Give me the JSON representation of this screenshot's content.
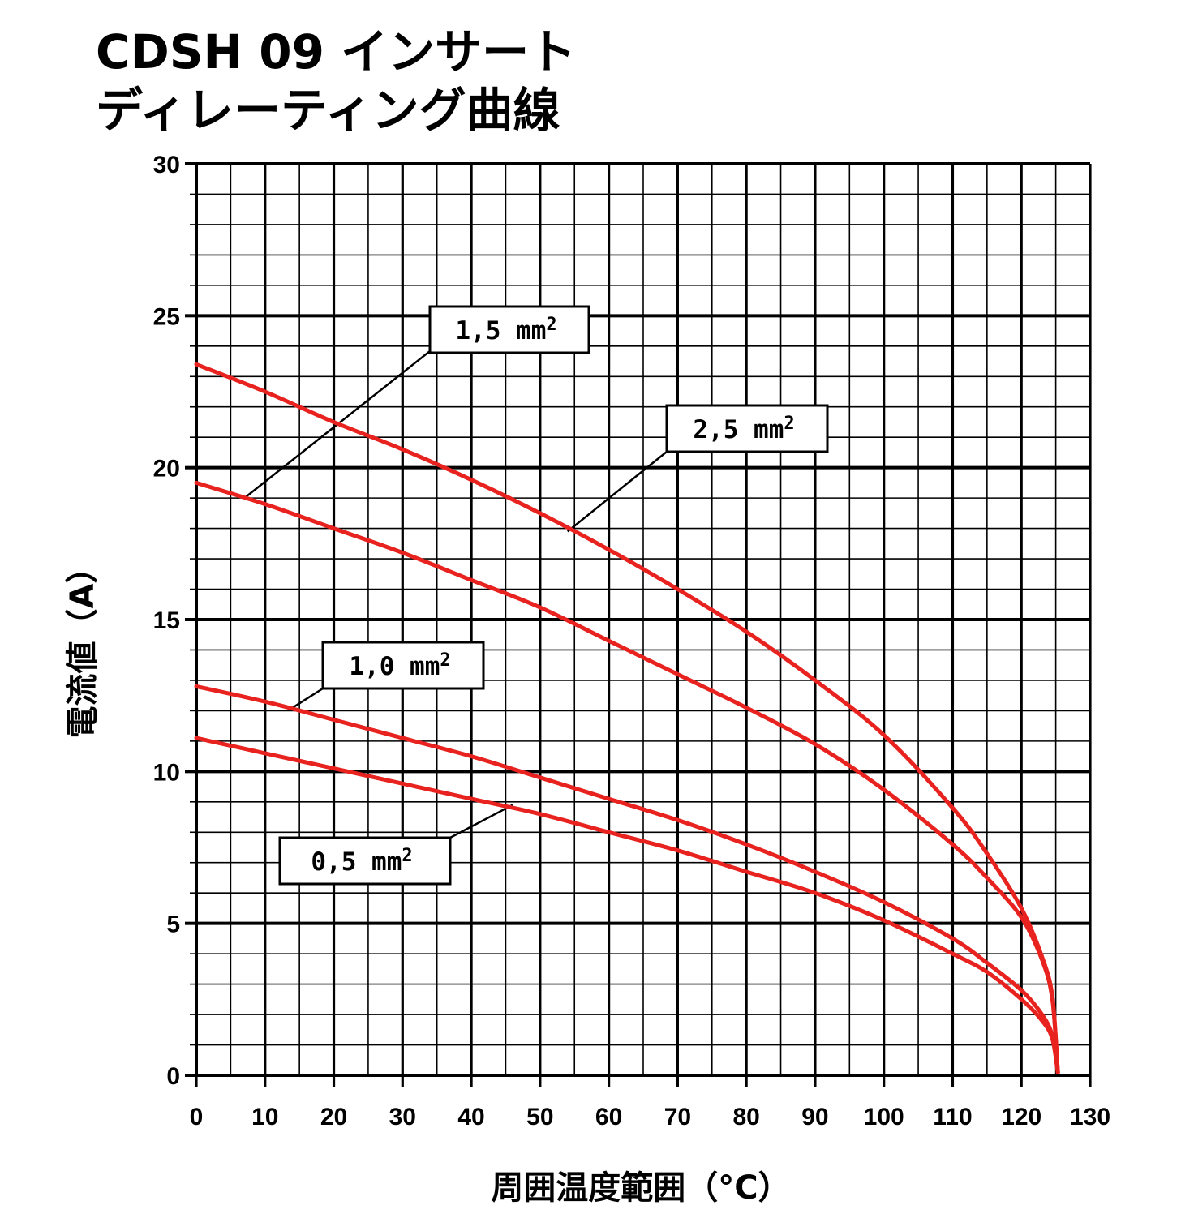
{
  "title_lines": [
    "CDSH 09 インサート",
    "ディレーティング曲線"
  ],
  "chart_data": {
    "type": "line",
    "xlabel": "周囲温度範囲（°C）",
    "ylabel": "電流値（A）",
    "xlim": [
      0,
      130
    ],
    "ylim": [
      0,
      30
    ],
    "xticks": [
      0,
      10,
      20,
      30,
      40,
      50,
      60,
      70,
      80,
      90,
      100,
      110,
      120,
      130
    ],
    "yticks": [
      0,
      5,
      10,
      15,
      20,
      25,
      30
    ],
    "grid": true,
    "series": [
      {
        "name": "1,5 mm²",
        "color": "#e8231f",
        "x": [
          0,
          10,
          20,
          30,
          40,
          50,
          60,
          70,
          80,
          90,
          100,
          110,
          115,
          120,
          123,
          124.5,
          125.3
        ],
        "y": [
          19.5,
          18.8,
          18.0,
          17.2,
          16.3,
          15.4,
          14.3,
          13.2,
          12.1,
          10.9,
          9.4,
          7.6,
          6.5,
          5.2,
          3.8,
          2.5,
          0.1
        ]
      },
      {
        "name": "2,5 mm²",
        "color": "#e8231f",
        "x": [
          0,
          10,
          20,
          30,
          40,
          50,
          60,
          70,
          80,
          90,
          100,
          110,
          115,
          120,
          123,
          124.5,
          125.3
        ],
        "y": [
          23.4,
          22.5,
          21.5,
          20.6,
          19.6,
          18.5,
          17.3,
          16.0,
          14.6,
          13.0,
          11.2,
          8.8,
          7.3,
          5.5,
          3.9,
          2.6,
          0.1
        ]
      },
      {
        "name": "1,0 mm²",
        "color": "#e8231f",
        "x": [
          0,
          10,
          20,
          30,
          40,
          50,
          60,
          70,
          80,
          90,
          100,
          110,
          115,
          120,
          123,
          124.5,
          125.3
        ],
        "y": [
          12.8,
          12.3,
          11.7,
          11.1,
          10.5,
          9.8,
          9.1,
          8.4,
          7.6,
          6.7,
          5.7,
          4.5,
          3.7,
          2.8,
          2.0,
          1.3,
          0.1
        ]
      },
      {
        "name": "0,5 mm²",
        "color": "#e8231f",
        "x": [
          0,
          10,
          20,
          30,
          40,
          50,
          60,
          70,
          80,
          90,
          100,
          110,
          115,
          120,
          123,
          124.5,
          125.3
        ],
        "y": [
          11.1,
          10.6,
          10.1,
          9.6,
          9.1,
          8.6,
          8.0,
          7.4,
          6.7,
          6.0,
          5.1,
          4.0,
          3.4,
          2.5,
          1.8,
          1.2,
          0.1
        ]
      }
    ],
    "callouts": [
      {
        "series": 0,
        "label": "1,5 mm",
        "sup": "2",
        "anchor": [
          7,
          19
        ]
      },
      {
        "series": 1,
        "label": "2,5 mm",
        "sup": "2",
        "anchor": [
          54,
          17.9
        ]
      },
      {
        "series": 2,
        "label": "1,0 mm",
        "sup": "2",
        "anchor": [
          14,
          12.1
        ]
      },
      {
        "series": 3,
        "label": "0,5 mm",
        "sup": "2",
        "anchor": [
          46,
          8.9
        ]
      }
    ]
  }
}
